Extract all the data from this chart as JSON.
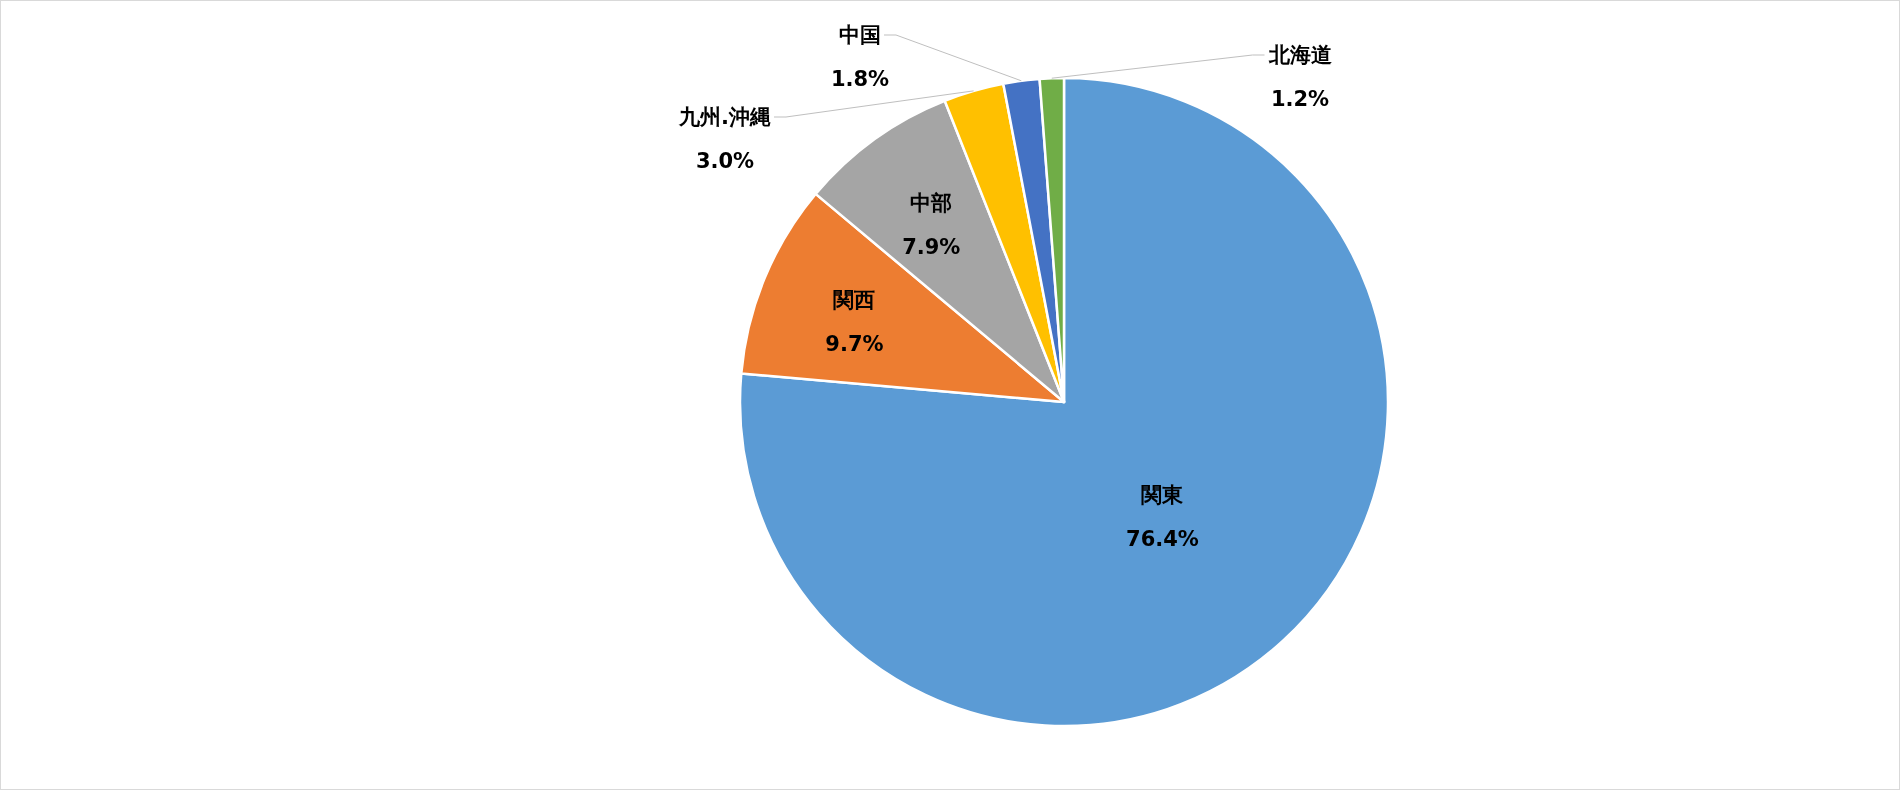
{
  "chart_data": {
    "type": "pie",
    "categories": [
      "関東",
      "関西",
      "中部",
      "九州.沖縄",
      "中国",
      "北海道"
    ],
    "values": [
      76.4,
      9.7,
      7.9,
      3.0,
      1.8,
      1.2
    ],
    "colors": [
      "#5b9bd5",
      "#ed7d31",
      "#a5a5a5",
      "#ffc000",
      "#4472c4",
      "#70ad47"
    ],
    "value_labels": [
      "76.4%",
      "9.7%",
      "7.9%",
      "3.0%",
      "1.8%",
      "1.2%"
    ]
  }
}
